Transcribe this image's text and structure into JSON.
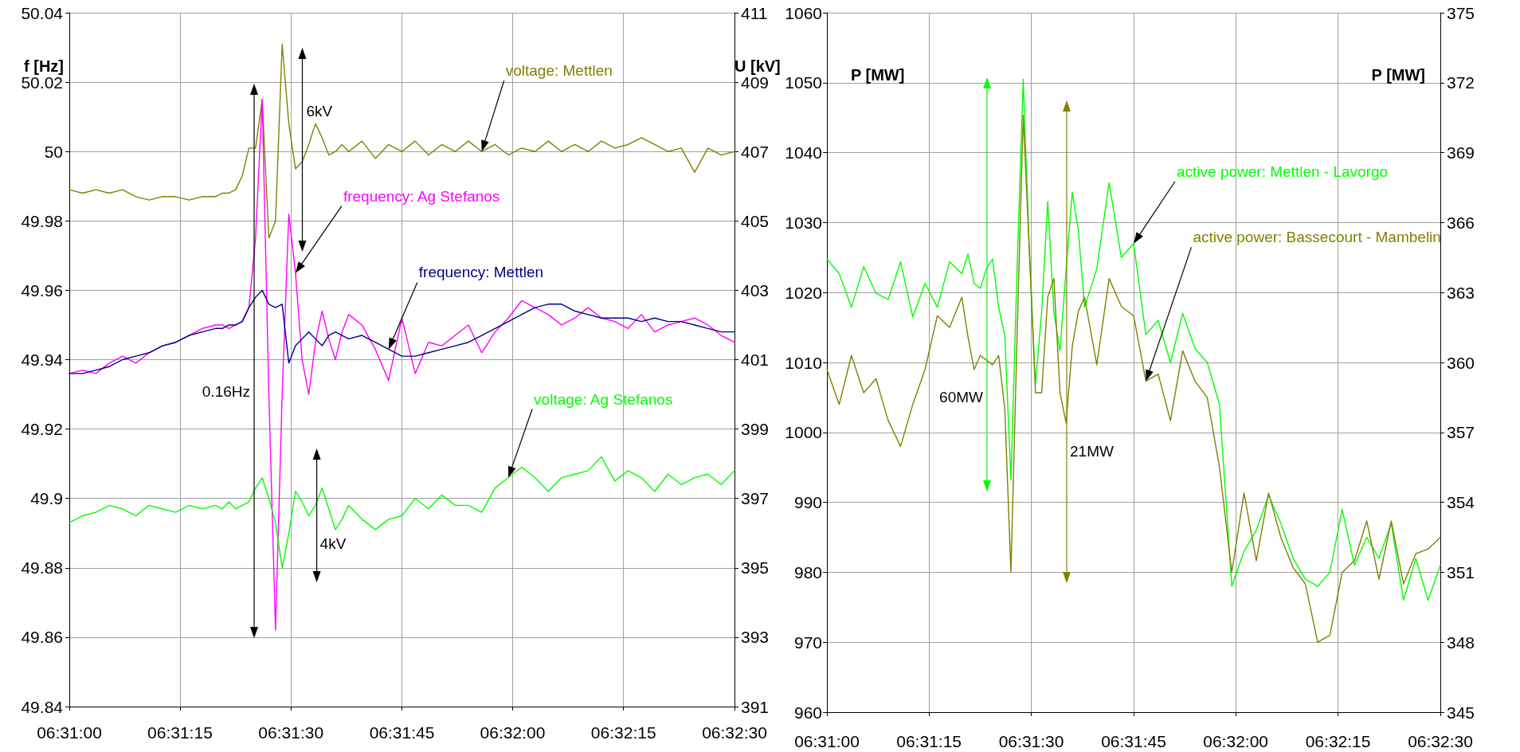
{
  "chart_data": [
    {
      "type": "line",
      "ylabel": "f [Hz]",
      "y2label": "U [kV]",
      "x": [
        6.51667,
        6.51717,
        6.51767,
        6.51817,
        6.51867,
        6.51917,
        6.51967,
        6.52017,
        6.52067,
        6.52117,
        6.52167,
        6.52217,
        6.52242,
        6.52267,
        6.52292,
        6.52317,
        6.52342,
        6.52367,
        6.52392,
        6.52417,
        6.52442,
        6.52467,
        6.52492,
        6.52517,
        6.52542,
        6.52567,
        6.52592,
        6.52617,
        6.52642,
        6.52667,
        6.52692,
        6.52717,
        6.52767,
        6.52817,
        6.52867,
        6.52917,
        6.52967,
        6.53017,
        6.53067,
        6.53117,
        6.53167,
        6.53217,
        6.53267,
        6.53317,
        6.53367,
        6.53417,
        6.53467,
        6.53517,
        6.53567,
        6.53617,
        6.53667,
        6.53717,
        6.53767,
        6.53817,
        6.53867,
        6.53917,
        6.53967,
        6.54017,
        6.54067,
        6.54117,
        6.54167
      ],
      "xlim": [
        6.51667,
        6.54167
      ],
      "xticks": [
        {
          "value": 6.51667,
          "label": "06:31:00"
        },
        {
          "value": 6.52083,
          "label": "06:31:15"
        },
        {
          "value": 6.525,
          "label": "06:31:30"
        },
        {
          "value": 6.52917,
          "label": "06:31:45"
        },
        {
          "value": 6.53333,
          "label": "06:32:00"
        },
        {
          "value": 6.5375,
          "label": "06:32:15"
        },
        {
          "value": 6.54167,
          "label": "06:32:30"
        }
      ],
      "ylim": [
        49.84,
        50.04
      ],
      "yticks": [
        49.84,
        49.86,
        49.88,
        49.9,
        49.92,
        49.94,
        49.96,
        49.98,
        50,
        50.02,
        50.04
      ],
      "y2lim": [
        391,
        411
      ],
      "y2ticks": [
        391,
        393,
        395,
        397,
        399,
        401,
        403,
        405,
        407,
        409,
        411
      ],
      "series": [
        {
          "name": "voltage: Mettlen",
          "color": "#808000",
          "axis": "y2",
          "values": [
            405.9,
            405.8,
            405.9,
            405.8,
            405.9,
            405.7,
            405.6,
            405.7,
            405.7,
            405.6,
            405.7,
            405.7,
            405.8,
            405.8,
            405.9,
            406.3,
            407.1,
            407.1,
            408.5,
            404.5,
            405.0,
            410.1,
            407.8,
            406.5,
            406.7,
            407.2,
            407.8,
            407.4,
            406.9,
            407.0,
            407.2,
            407.0,
            407.3,
            406.8,
            407.2,
            407.0,
            407.3,
            406.9,
            407.2,
            407.0,
            407.3,
            407.0,
            407.2,
            406.9,
            407.1,
            407.0,
            407.3,
            407.0,
            407.2,
            407.0,
            407.3,
            407.1,
            407.2,
            407.4,
            407.2,
            407.0,
            407.1,
            406.4,
            407.1,
            406.9,
            407.0
          ]
        },
        {
          "name": "frequency: Ag Stefanos",
          "color": "#ff00ff",
          "values": [
            49.936,
            49.937,
            49.936,
            49.939,
            49.941,
            49.939,
            49.942,
            49.944,
            49.945,
            49.947,
            49.949,
            49.95,
            49.95,
            49.949,
            49.95,
            49.951,
            49.955,
            49.975,
            50.015,
            49.93,
            49.862,
            49.93,
            49.982,
            49.965,
            49.94,
            49.93,
            49.945,
            49.954,
            49.946,
            49.94,
            49.948,
            49.953,
            49.95,
            49.943,
            49.934,
            49.952,
            49.936,
            49.945,
            49.944,
            49.947,
            49.95,
            49.942,
            49.948,
            49.952,
            49.957,
            49.955,
            49.953,
            49.95,
            49.952,
            49.955,
            49.952,
            49.951,
            49.949,
            49.953,
            49.948,
            49.95,
            49.951,
            49.952,
            49.95,
            49.947,
            49.945
          ]
        },
        {
          "name": "frequency: Mettlen",
          "color": "#000080",
          "values": [
            49.936,
            49.936,
            49.937,
            49.938,
            49.94,
            49.941,
            49.942,
            49.944,
            49.945,
            49.947,
            49.948,
            49.949,
            49.949,
            49.95,
            49.95,
            49.951,
            49.955,
            49.958,
            49.96,
            49.956,
            49.955,
            49.956,
            49.939,
            49.944,
            49.946,
            49.948,
            49.946,
            49.944,
            49.947,
            49.948,
            49.947,
            49.946,
            49.947,
            49.945,
            49.943,
            49.941,
            49.941,
            49.942,
            49.943,
            49.944,
            49.945,
            49.947,
            49.949,
            49.951,
            49.953,
            49.955,
            49.956,
            49.956,
            49.954,
            49.953,
            49.952,
            49.952,
            49.952,
            49.951,
            49.952,
            49.951,
            49.951,
            49.95,
            49.949,
            49.948,
            49.948
          ]
        },
        {
          "name": "voltage: Ag Stefanos",
          "color": "#00ff00",
          "axis": "y2",
          "values": [
            396.3,
            396.5,
            396.6,
            396.8,
            396.7,
            396.5,
            396.8,
            396.7,
            396.6,
            396.8,
            396.7,
            396.8,
            396.7,
            396.9,
            396.7,
            396.8,
            396.9,
            397.3,
            397.6,
            397.0,
            396.3,
            395.0,
            396.0,
            397.2,
            396.9,
            396.5,
            396.8,
            397.3,
            396.7,
            396.1,
            396.4,
            396.8,
            396.4,
            396.1,
            396.4,
            396.5,
            397.0,
            396.7,
            397.1,
            396.8,
            396.8,
            396.6,
            397.3,
            397.6,
            397.9,
            397.6,
            397.2,
            397.6,
            397.7,
            397.8,
            398.2,
            397.5,
            397.8,
            397.6,
            397.2,
            397.7,
            397.4,
            397.6,
            397.7,
            397.4,
            397.8
          ]
        }
      ],
      "annotations": [
        "6kV",
        "0.16Hz",
        "4kV"
      ],
      "grid": true,
      "marker": "none",
      "line_style": "solid"
    },
    {
      "type": "line",
      "ylabel": "P [MW]",
      "y2label": "P [MW]",
      "x": [
        6.51667,
        6.51717,
        6.51767,
        6.51817,
        6.51867,
        6.51917,
        6.51967,
        6.52017,
        6.52067,
        6.52117,
        6.52167,
        6.52217,
        6.52242,
        6.52267,
        6.52292,
        6.52317,
        6.52342,
        6.52367,
        6.52392,
        6.52417,
        6.52442,
        6.52467,
        6.52492,
        6.52517,
        6.52542,
        6.52567,
        6.52592,
        6.52617,
        6.52642,
        6.52667,
        6.52692,
        6.52717,
        6.52767,
        6.52817,
        6.52867,
        6.52917,
        6.52967,
        6.53017,
        6.53067,
        6.53117,
        6.53167,
        6.53217,
        6.53267,
        6.53317,
        6.53367,
        6.53417,
        6.53467,
        6.53517,
        6.53567,
        6.53617,
        6.53667,
        6.53717,
        6.53767,
        6.53817,
        6.53867,
        6.53917,
        6.53967,
        6.54017,
        6.54067,
        6.54117,
        6.54167
      ],
      "xlim": [
        6.51667,
        6.54167
      ],
      "xticks": [
        {
          "value": 6.51667,
          "label": "06:31:00"
        },
        {
          "value": 6.52083,
          "label": "06:31:15"
        },
        {
          "value": 6.525,
          "label": "06:31:30"
        },
        {
          "value": 6.52917,
          "label": "06:31:45"
        },
        {
          "value": 6.53333,
          "label": "06:32:00"
        },
        {
          "value": 6.5375,
          "label": "06:32:15"
        },
        {
          "value": 6.54167,
          "label": "06:32:30"
        }
      ],
      "ylim": [
        960,
        1060
      ],
      "yticks": [
        960,
        970,
        980,
        990,
        1000,
        1010,
        1020,
        1030,
        1040,
        1050,
        1060
      ],
      "y2lim": [
        345,
        375
      ],
      "y2ticks": [
        345,
        348,
        351,
        354,
        357,
        360,
        363,
        366,
        369,
        372,
        375
      ],
      "series": [
        {
          "name": "active power: Mettlen - Lavorgo",
          "color": "#00ff00",
          "values": [
            1024.8,
            1022.7,
            1017.9,
            1023.7,
            1019.9,
            1019.0,
            1024.4,
            1016.5,
            1021.3,
            1017.9,
            1024.4,
            1022.7,
            1025.5,
            1021.3,
            1020.6,
            1023.4,
            1024.8,
            1017.9,
            1013.8,
            993.2,
            1023.4,
            1050.5,
            1026.1,
            1006.9,
            1017.2,
            1033.0,
            1017.2,
            1011.7,
            1023.4,
            1034.3,
            1028.8,
            1017.9,
            1023.4,
            1035.7,
            1025,
            1027,
            1014,
            1016,
            1010,
            1017,
            1012,
            1010,
            1004,
            978,
            983,
            986,
            991,
            987,
            982,
            979,
            978,
            980,
            989,
            981,
            985,
            982,
            987,
            976,
            982,
            976,
            981
          ]
        },
        {
          "name": "active power: Bassecourt - Mambelin",
          "color": "#808000",
          "axis": "y2",
          "values": [
            359.7,
            358.2,
            360.3,
            358.7,
            359.3,
            357.5,
            356.4,
            358.2,
            359.7,
            362.0,
            361.5,
            362.8,
            361.1,
            359.7,
            360.3,
            360.1,
            359.9,
            360.3,
            358.0,
            351.0,
            361.1,
            370.6,
            364.8,
            358.7,
            358.7,
            362.8,
            363.6,
            358.7,
            357.4,
            360.7,
            362.2,
            362.8,
            359.9,
            363.6,
            362.4,
            362.0,
            359.2,
            359.5,
            357.5,
            360.5,
            359.2,
            358.5,
            355.5,
            351.0,
            354.4,
            351.5,
            354.4,
            352.5,
            351.2,
            350.5,
            348.0,
            348.3,
            351.0,
            351.5,
            353.2,
            350.7,
            353.2,
            350.5,
            351.8,
            352.0,
            352.5
          ]
        }
      ],
      "annotations": [
        "60MW",
        "21MW"
      ],
      "grid": true,
      "marker": "none",
      "line_style": "solid"
    }
  ]
}
